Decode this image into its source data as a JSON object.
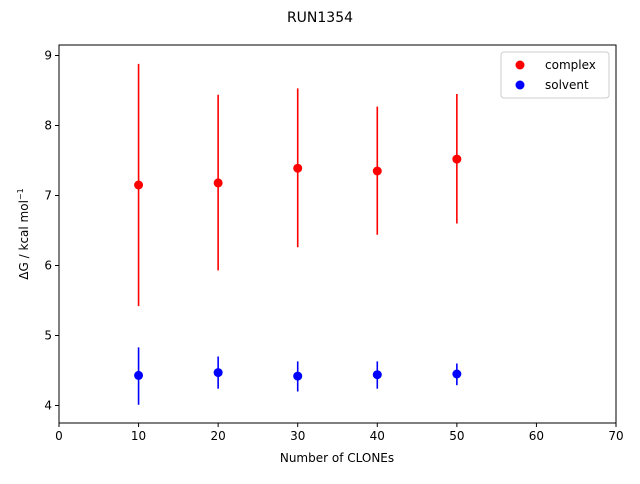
{
  "chart_data": {
    "type": "scatter",
    "title": "RUN1354",
    "xlabel": "Number of CLONEs",
    "ylabel": "ΔG / kcal mol",
    "ylabel_superscript": "−1",
    "xlim": [
      0,
      70
    ],
    "ylim": [
      3.75,
      9.15
    ],
    "xticks": [
      0,
      10,
      20,
      30,
      40,
      50,
      60,
      70
    ],
    "yticks": [
      4,
      5,
      6,
      7,
      8,
      9
    ],
    "grid": false,
    "legend_position": "top-right",
    "series": [
      {
        "name": "complex",
        "color": "#ff0000",
        "points": [
          {
            "x": 10,
            "y": 7.15,
            "err_low": 5.42,
            "err_high": 8.88
          },
          {
            "x": 20,
            "y": 7.18,
            "err_low": 5.93,
            "err_high": 8.44
          },
          {
            "x": 30,
            "y": 7.39,
            "err_low": 6.26,
            "err_high": 8.53
          },
          {
            "x": 40,
            "y": 7.35,
            "err_low": 6.44,
            "err_high": 8.27
          },
          {
            "x": 50,
            "y": 7.52,
            "err_low": 6.6,
            "err_high": 8.45
          }
        ]
      },
      {
        "name": "solvent",
        "color": "#0000ff",
        "points": [
          {
            "x": 10,
            "y": 4.43,
            "err_low": 4.01,
            "err_high": 4.83
          },
          {
            "x": 20,
            "y": 4.47,
            "err_low": 4.24,
            "err_high": 4.7
          },
          {
            "x": 30,
            "y": 4.42,
            "err_low": 4.2,
            "err_high": 4.63
          },
          {
            "x": 40,
            "y": 4.44,
            "err_low": 4.24,
            "err_high": 4.63
          },
          {
            "x": 50,
            "y": 4.45,
            "err_low": 4.29,
            "err_high": 4.6
          }
        ]
      }
    ]
  }
}
